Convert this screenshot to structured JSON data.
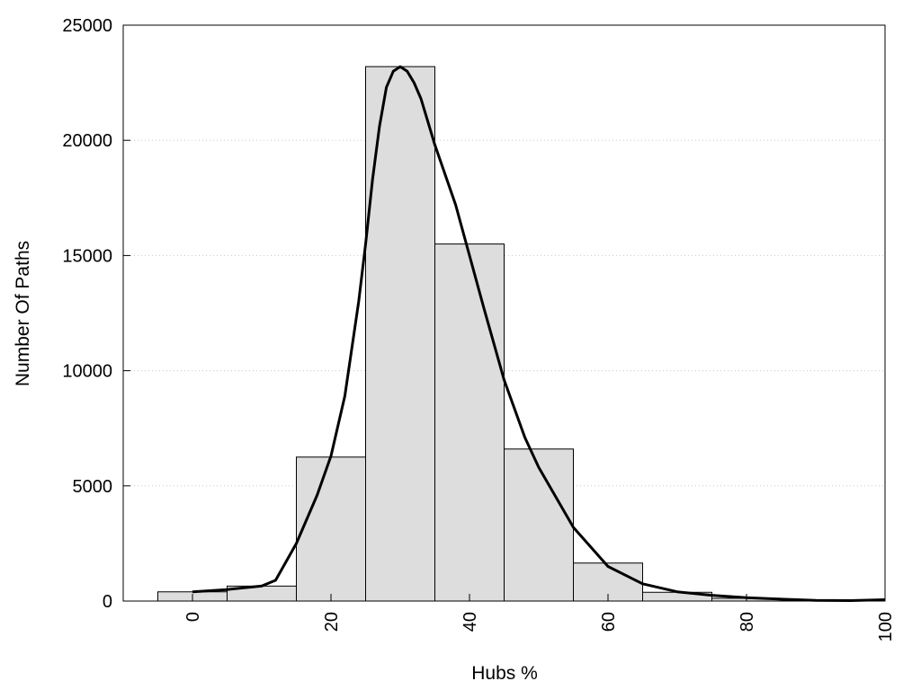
{
  "chart_data": {
    "type": "bar",
    "xlabel": "Hubs %",
    "ylabel": "Number Of Paths",
    "xlim": [
      -10,
      100
    ],
    "ylim": [
      0,
      25000
    ],
    "x_ticks": [
      0,
      20,
      40,
      60,
      80,
      100
    ],
    "y_ticks": [
      0,
      5000,
      10000,
      15000,
      20000,
      25000
    ],
    "grid": "horizontal dotted",
    "bin_width": 10,
    "bins": [
      {
        "center": 0,
        "value": 400
      },
      {
        "center": 10,
        "value": 650
      },
      {
        "center": 20,
        "value": 6250
      },
      {
        "center": 30,
        "value": 23200
      },
      {
        "center": 40,
        "value": 15500
      },
      {
        "center": 50,
        "value": 6600
      },
      {
        "center": 60,
        "value": 1650
      },
      {
        "center": 70,
        "value": 380
      },
      {
        "center": 80,
        "value": 120
      },
      {
        "center": 90,
        "value": 50
      }
    ],
    "density_curve": {
      "x": [
        0,
        5,
        10,
        12,
        15,
        18,
        20,
        22,
        24,
        25,
        26,
        27,
        28,
        29,
        30,
        31,
        32,
        33,
        35,
        38,
        40,
        42,
        45,
        48,
        50,
        55,
        60,
        65,
        70,
        75,
        80,
        85,
        90,
        95,
        100
      ],
      "y": [
        400,
        500,
        650,
        900,
        2500,
        4600,
        6300,
        8900,
        13000,
        15500,
        18300,
        20600,
        22300,
        23000,
        23200,
        23000,
        22500,
        21800,
        19800,
        17200,
        15000,
        12800,
        9600,
        7100,
        5800,
        3200,
        1500,
        750,
        400,
        250,
        150,
        80,
        30,
        20,
        60
      ]
    }
  }
}
